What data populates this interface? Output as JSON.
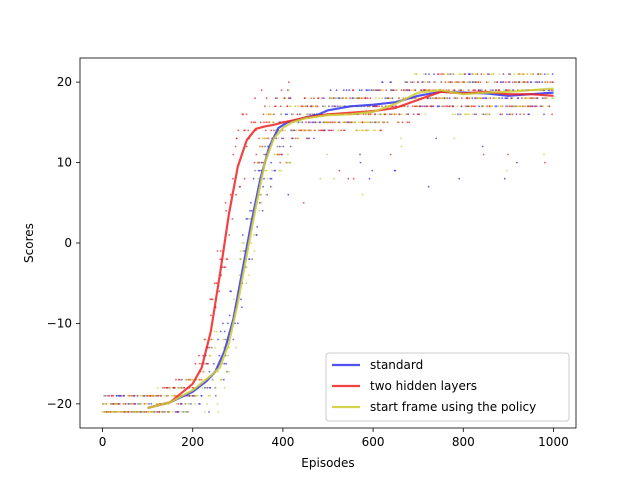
{
  "chart_data": {
    "type": "line",
    "title": "",
    "xlabel": "Episodes",
    "ylabel": "Scores",
    "xlim": [
      -50,
      1050
    ],
    "ylim": [
      -23,
      23
    ],
    "x_ticks": [
      0,
      200,
      400,
      600,
      800,
      1000
    ],
    "y_ticks": [
      -20,
      -10,
      0,
      10,
      20
    ],
    "grid": false,
    "legend_position": "lower-right",
    "series": [
      {
        "name": "standard",
        "color": "#3333ee",
        "x": [
          100,
          150,
          200,
          230,
          250,
          270,
          290,
          310,
          330,
          350,
          370,
          390,
          410,
          430,
          450,
          480,
          500,
          550,
          600,
          650,
          700,
          750,
          800,
          850,
          900,
          950,
          1000
        ],
        "y": [
          -20.5,
          -19.8,
          -18.5,
          -17.2,
          -16.0,
          -13.5,
          -9.5,
          -3.5,
          2.5,
          8.0,
          12.0,
          14.3,
          15.0,
          15.3,
          15.6,
          16.0,
          16.5,
          17.0,
          17.2,
          17.5,
          18.3,
          18.8,
          18.7,
          18.6,
          18.3,
          18.5,
          18.7
        ]
      },
      {
        "name": "two hidden layers",
        "color": "#ee2222",
        "x": [
          100,
          150,
          200,
          220,
          240,
          260,
          280,
          300,
          320,
          340,
          360,
          380,
          400,
          420,
          450,
          500,
          550,
          600,
          650,
          700,
          750,
          800,
          850,
          900,
          950,
          1000
        ],
        "y": [
          -20.5,
          -19.8,
          -17.5,
          -15.5,
          -11.0,
          -4.0,
          3.5,
          9.5,
          12.8,
          14.2,
          14.5,
          14.7,
          15.0,
          15.2,
          15.6,
          16.0,
          16.2,
          16.4,
          16.8,
          17.8,
          18.8,
          18.6,
          18.8,
          18.5,
          18.5,
          18.3
        ]
      },
      {
        "name": "start frame using the policy",
        "color": "#cccc33",
        "x": [
          100,
          150,
          200,
          240,
          260,
          280,
          300,
          320,
          340,
          360,
          380,
          400,
          420,
          450,
          500,
          550,
          600,
          650,
          700,
          750,
          800,
          850,
          900,
          950,
          1000
        ],
        "y": [
          -20.5,
          -19.8,
          -18.3,
          -16.5,
          -15.5,
          -12.5,
          -7.5,
          -1.5,
          4.5,
          10.0,
          13.0,
          14.3,
          15.0,
          15.5,
          15.9,
          16.0,
          16.3,
          17.3,
          18.7,
          19.0,
          18.5,
          18.7,
          18.8,
          19.0,
          19.2
        ]
      }
    ],
    "scatter_note_series": "individual episode scores plotted as small dots in each series color"
  }
}
